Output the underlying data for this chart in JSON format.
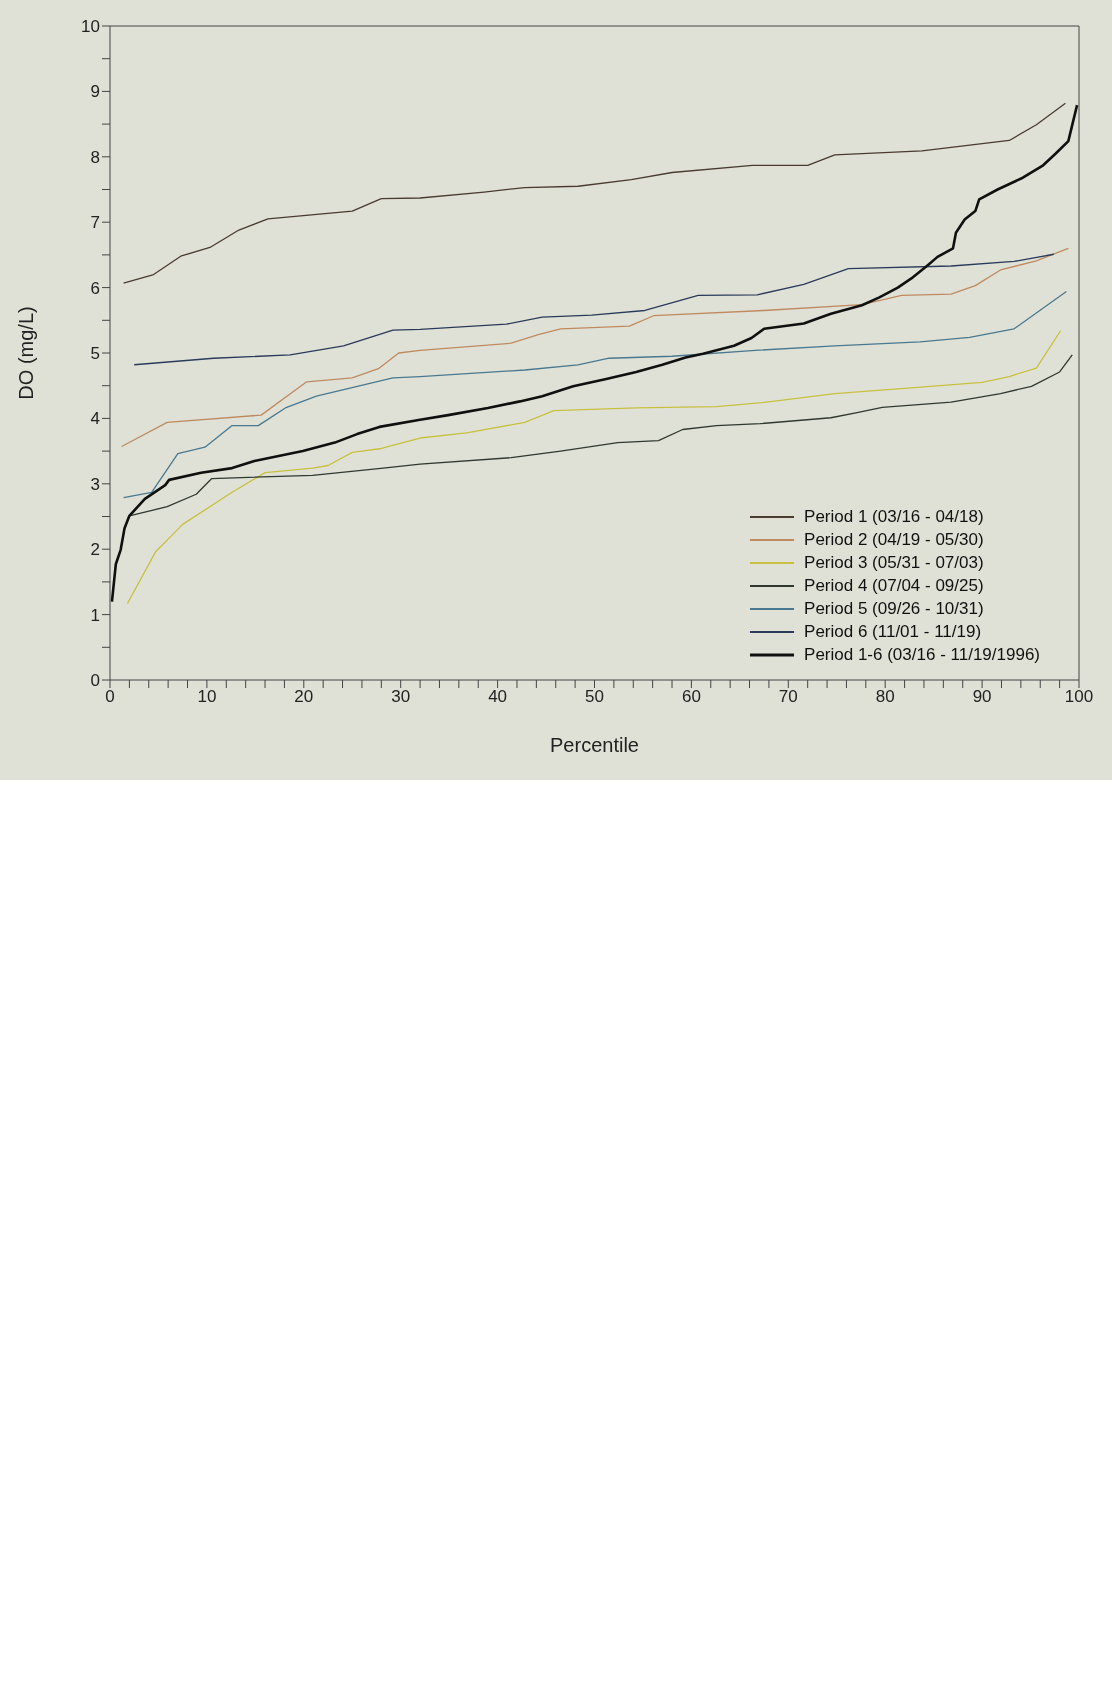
{
  "chart_data": {
    "type": "line",
    "xlabel": "Percentile",
    "ylabel": "DO (mg/L)",
    "xlim": [
      0,
      100
    ],
    "ylim": [
      0,
      10
    ],
    "xticks": [
      0,
      {
        "value": 2,
        "label": null
      },
      {
        "value": 4,
        "label": null
      },
      {
        "value": 6,
        "label": null
      },
      {
        "value": 8,
        "label": null
      },
      10,
      {
        "value": 12,
        "label": null
      },
      {
        "value": 14,
        "label": null
      },
      {
        "value": 16,
        "label": null
      },
      {
        "value": 18,
        "label": null
      },
      20,
      {
        "value": 22,
        "label": null
      },
      {
        "value": 24,
        "label": null
      },
      {
        "value": 26,
        "label": null
      },
      {
        "value": 28,
        "label": null
      },
      30,
      {
        "value": 32,
        "label": null
      },
      {
        "value": 34,
        "label": null
      },
      {
        "value": 36,
        "label": null
      },
      {
        "value": 38,
        "label": null
      },
      40,
      {
        "value": 42,
        "label": null
      },
      {
        "value": 44,
        "label": null
      },
      {
        "value": 46,
        "label": null
      },
      {
        "value": 48,
        "label": null
      },
      50,
      {
        "value": 52,
        "label": null
      },
      {
        "value": 54,
        "label": null
      },
      {
        "value": 56,
        "label": null
      },
      {
        "value": 58,
        "label": null
      },
      60,
      {
        "value": 62,
        "label": null
      },
      {
        "value": 64,
        "label": null
      },
      {
        "value": 66,
        "label": null
      },
      {
        "value": 68,
        "label": null
      },
      70,
      {
        "value": 72,
        "label": null
      },
      {
        "value": 74,
        "label": null
      },
      {
        "value": 76,
        "label": null
      },
      {
        "value": 78,
        "label": null
      },
      80,
      {
        "value": 82,
        "label": null
      },
      {
        "value": 84,
        "label": null
      },
      {
        "value": 86,
        "label": null
      },
      {
        "value": 88,
        "label": null
      },
      90,
      {
        "value": 92,
        "label": null
      },
      {
        "value": 94,
        "label": null
      },
      {
        "value": 96,
        "label": null
      },
      {
        "value": 98,
        "label": null
      },
      100
    ],
    "yticks": [
      0,
      {
        "value": 0.5,
        "label": null
      },
      1,
      {
        "value": 1.5,
        "label": null
      },
      2,
      {
        "value": 2.5,
        "label": null
      },
      3,
      {
        "value": 3.5,
        "label": null
      },
      4,
      {
        "value": 4.5,
        "label": null
      },
      5,
      {
        "value": 5.5,
        "label": null
      },
      6,
      {
        "value": 6.5,
        "label": null
      },
      7,
      {
        "value": 7.5,
        "label": null
      },
      8,
      {
        "value": 8.5,
        "label": null
      },
      9,
      {
        "value": 9.5,
        "label": null
      },
      10
    ],
    "legend": "bottom right",
    "marker": "none",
    "line_style": "solid",
    "series": [
      {
        "name": "Period 1 (03/16 - 04/18)",
        "color": "#4a3a30",
        "x": [
          1.4,
          4.5,
          7.3,
          10.4,
          13.3,
          16.3,
          25,
          28,
          32,
          38.6,
          42.8,
          48.3,
          53.8,
          58,
          66.3,
          72,
          74.8,
          83.8,
          92.8,
          95.6,
          98.6
        ],
        "values": [
          6.07,
          6.2,
          6.48,
          6.62,
          6.88,
          7.05,
          7.17,
          7.36,
          7.37,
          7.46,
          7.53,
          7.55,
          7.65,
          7.76,
          7.87,
          7.87,
          8.03,
          8.09,
          8.25,
          8.49,
          8.82
        ]
      },
      {
        "name": "Period 2 (04/19 - 05/30)",
        "color": "#c08a60",
        "x": [
          1.2,
          5.9,
          15.6,
          20.3,
          25,
          27.7,
          29.8,
          32,
          41.4,
          44.2,
          46.5,
          53.6,
          56.1,
          67.5,
          77.6,
          81.7,
          86.8,
          89.3,
          91.9,
          95.6,
          98.9
        ],
        "values": [
          3.57,
          3.94,
          4.05,
          4.56,
          4.62,
          4.76,
          5.0,
          5.04,
          5.15,
          5.28,
          5.37,
          5.41,
          5.57,
          5.65,
          5.74,
          5.88,
          5.9,
          6.03,
          6.27,
          6.41,
          6.6
        ]
      },
      {
        "name": "Period 3 (05/31 - 07/03)",
        "color": "#c8c040",
        "x": [
          1.8,
          4.7,
          7.5,
          12.6,
          16,
          20.9,
          22.5,
          25,
          28,
          32,
          36.8,
          42.8,
          45.8,
          54.3,
          62.6,
          67.3,
          74.8,
          81.3,
          90,
          92.8,
          95.6,
          98.1
        ],
        "values": [
          1.17,
          1.96,
          2.38,
          2.87,
          3.17,
          3.24,
          3.28,
          3.48,
          3.54,
          3.7,
          3.78,
          3.94,
          4.12,
          4.16,
          4.18,
          4.24,
          4.38,
          4.45,
          4.55,
          4.64,
          4.77,
          5.34
        ]
      },
      {
        "name": "Period 4 (07/04 - 09/25)",
        "color": "#303830",
        "x": [
          2,
          5.9,
          8.9,
          10.5,
          20.9,
          28.2,
          32,
          41.4,
          46.5,
          52.4,
          56.6,
          59.1,
          62.6,
          67.1,
          74.4,
          77.1,
          79.7,
          86.8,
          91.9,
          95.1,
          98,
          99.3
        ],
        "values": [
          2.51,
          2.65,
          2.84,
          3.08,
          3.13,
          3.24,
          3.3,
          3.4,
          3.5,
          3.63,
          3.66,
          3.83,
          3.89,
          3.92,
          4.01,
          4.09,
          4.17,
          4.25,
          4.38,
          4.49,
          4.71,
          4.97
        ]
      },
      {
        "name": "Period 5 (09/26 - 10/31)",
        "color": "#4a7890",
        "x": [
          1.4,
          4.3,
          7,
          9.8,
          12.6,
          15.3,
          18.1,
          21.3,
          29.2,
          32,
          42.8,
          48.3,
          51.5,
          58,
          66.6,
          74.8,
          83.6,
          88.7,
          93.3,
          98.7
        ],
        "values": [
          2.79,
          2.87,
          3.46,
          3.56,
          3.89,
          3.89,
          4.16,
          4.34,
          4.62,
          4.64,
          4.74,
          4.82,
          4.92,
          4.95,
          5.04,
          5.11,
          5.17,
          5.24,
          5.37,
          5.94
        ]
      },
      {
        "name": "Period 6 (11/01 - 11/19)",
        "color": "#2a3a5a",
        "x": [
          2.5,
          10.7,
          18.6,
          24.1,
          29.2,
          32,
          40.9,
          44.6,
          49.7,
          55.2,
          60.7,
          66.8,
          71.6,
          76.2,
          86.8,
          93.3,
          97.4
        ],
        "values": [
          4.82,
          4.92,
          4.97,
          5.11,
          5.35,
          5.36,
          5.44,
          5.55,
          5.58,
          5.65,
          5.88,
          5.89,
          6.05,
          6.29,
          6.33,
          6.4,
          6.51
        ]
      },
      {
        "name": "Period 1-6 (03/16 - 11/19/1996)",
        "color": "#101010",
        "x": [
          0.2,
          0.6,
          1.1,
          1.5,
          2,
          3.6,
          5.7,
          6.1,
          9.4,
          12.6,
          14.9,
          19.9,
          23.2,
          25.5,
          27.8,
          32,
          34.9,
          39,
          42.3,
          44.6,
          47.8,
          51.1,
          54.3,
          57,
          59.4,
          61.2,
          64.4,
          66.2,
          67.5,
          71.6,
          74.4,
          77.6,
          79.4,
          81.3,
          82.7,
          84.3,
          85.4,
          87,
          87.3,
          88.2,
          89.3,
          89.7,
          91.6,
          94.2,
          96.3,
          97.6,
          98.9,
          99.8
        ],
        "values": [
          1.2,
          1.77,
          1.99,
          2.32,
          2.51,
          2.77,
          2.98,
          3.06,
          3.17,
          3.24,
          3.35,
          3.5,
          3.63,
          3.76,
          3.87,
          3.98,
          4.05,
          4.16,
          4.26,
          4.34,
          4.49,
          4.6,
          4.71,
          4.82,
          4.93,
          4.99,
          5.11,
          5.23,
          5.37,
          5.45,
          5.6,
          5.73,
          5.85,
          6.0,
          6.14,
          6.33,
          6.47,
          6.6,
          6.84,
          7.04,
          7.17,
          7.35,
          7.5,
          7.68,
          7.87,
          8.05,
          8.24,
          8.79
        ]
      }
    ]
  }
}
